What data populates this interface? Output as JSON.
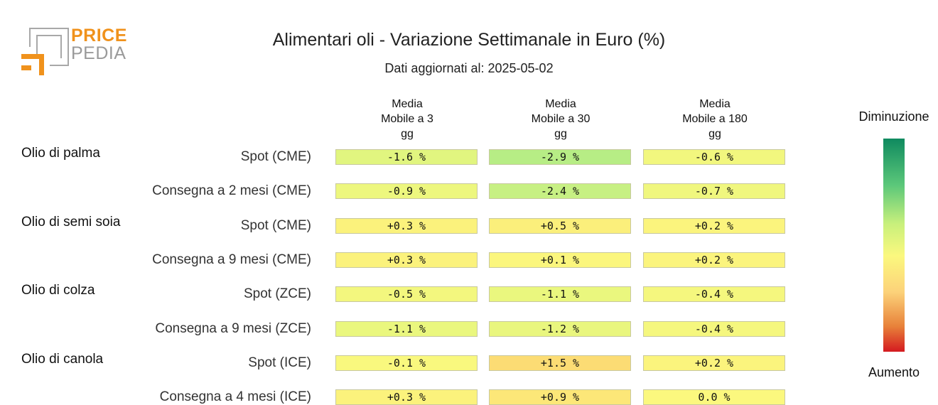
{
  "logo": {
    "word1": "PRICE",
    "word2": "PEDIA"
  },
  "title": "Alimentari oli - Variazione Settimanale in Euro (%)",
  "subtitle": "Dati aggiornati al: 2025-05-02",
  "legend": {
    "top": "Diminuzione",
    "bottom": "Aumento"
  },
  "chart_data": {
    "type": "table",
    "title": "Alimentari oli - Variazione Settimanale in Euro (%)",
    "columns": [
      {
        "lines": [
          "Media",
          "Mobile a 3",
          "gg"
        ]
      },
      {
        "lines": [
          "Media",
          "Mobile a 30",
          "gg"
        ]
      },
      {
        "lines": [
          "Media",
          "Mobile a 180",
          "gg"
        ]
      }
    ],
    "groups": [
      {
        "name": "Olio di palma",
        "rows": [
          {
            "label": "Spot (CME)",
            "values": [
              -1.6,
              -2.9,
              -0.6
            ],
            "texts": [
              "-1.6 %",
              "-2.9 %",
              "-0.6 %"
            ]
          },
          {
            "label": "Consegna a 2 mesi (CME)",
            "values": [
              -0.9,
              -2.4,
              -0.7
            ],
            "texts": [
              "-0.9 %",
              "-2.4 %",
              "-0.7 %"
            ]
          }
        ]
      },
      {
        "name": "Olio di semi soia",
        "rows": [
          {
            "label": "Spot (CME)",
            "values": [
              0.3,
              0.5,
              0.2
            ],
            "texts": [
              "+0.3 %",
              "+0.5 %",
              "+0.2 %"
            ]
          },
          {
            "label": "Consegna a 9 mesi (CME)",
            "values": [
              0.3,
              0.1,
              0.2
            ],
            "texts": [
              "+0.3 %",
              "+0.1 %",
              "+0.2 %"
            ]
          }
        ]
      },
      {
        "name": "Olio di colza",
        "rows": [
          {
            "label": "Spot (ZCE)",
            "values": [
              -0.5,
              -1.1,
              -0.4
            ],
            "texts": [
              "-0.5 %",
              "-1.1 %",
              "-0.4 %"
            ]
          },
          {
            "label": "Consegna a 9 mesi (ZCE)",
            "values": [
              -1.1,
              -1.2,
              -0.4
            ],
            "texts": [
              "-1.1 %",
              "-1.2 %",
              "-0.4 %"
            ]
          }
        ]
      },
      {
        "name": "Olio di canola",
        "rows": [
          {
            "label": "Spot (ICE)",
            "values": [
              -0.1,
              1.5,
              0.2
            ],
            "texts": [
              "-0.1 %",
              "+1.5 %",
              "+0.2 %"
            ]
          },
          {
            "label": "Consegna a 4 mesi (ICE)",
            "values": [
              0.3,
              0.9,
              0.0
            ],
            "texts": [
              "+0.3 %",
              "+0.9 %",
              "0.0 %"
            ]
          }
        ]
      }
    ],
    "color_scale": {
      "decrease": "#0f8a5f",
      "neutral": "#fbf87e",
      "increase": "#d41a20"
    }
  }
}
